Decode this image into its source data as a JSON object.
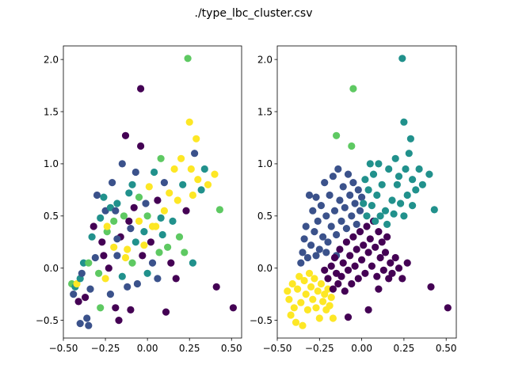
{
  "title": "./type_lbc_cluster.csv",
  "chart_data": [
    {
      "type": "scatter",
      "panel": "left",
      "xlim": [
        -0.5,
        0.56
      ],
      "ylim": [
        -0.67,
        2.13
      ],
      "xticks": [
        -0.5,
        -0.25,
        0.0,
        0.25,
        0.5
      ],
      "xtick_labels": [
        "−0.50",
        "−0.25",
        "0.00",
        "0.25",
        "0.50"
      ],
      "yticks": [
        -0.5,
        0.0,
        0.5,
        1.0,
        1.5,
        2.0
      ],
      "ytick_labels": [
        "−0.5",
        "0.0",
        "0.5",
        "1.0",
        "1.5",
        "2.0"
      ],
      "grid": false,
      "legend": "none",
      "colormap": "viridis",
      "colors": [
        "#440154",
        "#3b528b",
        "#21918c",
        "#5ec962",
        "#fde725"
      ],
      "points": [
        [
          -0.45,
          -0.15,
          3
        ],
        [
          -0.44,
          -0.25,
          1
        ],
        [
          -0.43,
          -0.18,
          2
        ],
        [
          -0.42,
          -0.15,
          4
        ],
        [
          -0.41,
          -0.32,
          0
        ],
        [
          -0.4,
          -0.1,
          2
        ],
        [
          -0.4,
          -0.53,
          1
        ],
        [
          -0.39,
          -0.05,
          1
        ],
        [
          -0.38,
          0.05,
          2
        ],
        [
          -0.37,
          -0.28,
          0
        ],
        [
          -0.36,
          -0.48,
          1
        ],
        [
          -0.35,
          -0.55,
          1
        ],
        [
          -0.35,
          0.05,
          3
        ],
        [
          -0.34,
          -0.2,
          1
        ],
        [
          -0.33,
          0.3,
          2
        ],
        [
          -0.32,
          0.4,
          0
        ],
        [
          -0.31,
          0.1,
          1
        ],
        [
          -0.3,
          0.7,
          1
        ],
        [
          -0.29,
          -0.05,
          3
        ],
        [
          -0.28,
          0.48,
          2
        ],
        [
          -0.28,
          -0.38,
          3
        ],
        [
          -0.27,
          0.25,
          0
        ],
        [
          -0.26,
          0.68,
          2
        ],
        [
          -0.25,
          0.55,
          1
        ],
        [
          -0.25,
          -0.1,
          4
        ],
        [
          -0.24,
          0.35,
          3
        ],
        [
          -0.23,
          0.0,
          0
        ],
        [
          -0.22,
          0.58,
          2
        ],
        [
          -0.22,
          -0.25,
          1
        ],
        [
          -0.21,
          0.82,
          1
        ],
        [
          -0.2,
          0.2,
          4
        ],
        [
          -0.2,
          0.45,
          3
        ],
        [
          -0.19,
          -0.38,
          0
        ],
        [
          -0.18,
          0.12,
          1
        ],
        [
          -0.18,
          0.62,
          2
        ],
        [
          -0.17,
          -0.5,
          0
        ],
        [
          -0.16,
          0.3,
          0
        ],
        [
          -0.15,
          -0.08,
          2
        ],
        [
          -0.15,
          1.0,
          1
        ],
        [
          -0.14,
          0.5,
          3
        ],
        [
          -0.13,
          1.27,
          0
        ],
        [
          -0.12,
          0.18,
          4
        ],
        [
          -0.12,
          -0.18,
          1
        ],
        [
          -0.11,
          0.72,
          2
        ],
        [
          -0.1,
          0.38,
          1
        ],
        [
          -0.1,
          -0.4,
          0
        ],
        [
          -0.09,
          0.05,
          3
        ],
        [
          -0.08,
          0.58,
          0
        ],
        [
          -0.07,
          0.25,
          2
        ],
        [
          -0.07,
          0.92,
          1
        ],
        [
          -0.06,
          -0.15,
          1
        ],
        [
          -0.05,
          0.45,
          4
        ],
        [
          -0.05,
          0.68,
          3
        ],
        [
          -0.04,
          1.72,
          0
        ],
        [
          -0.04,
          1.17,
          0
        ],
        [
          -0.03,
          0.12,
          0
        ],
        [
          -0.02,
          0.35,
          2
        ],
        [
          -0.01,
          0.62,
          1
        ],
        [
          0.0,
          -0.05,
          2
        ],
        [
          0.0,
          0.5,
          3
        ],
        [
          0.01,
          0.78,
          4
        ],
        [
          0.02,
          0.25,
          0
        ],
        [
          0.03,
          0.05,
          1
        ],
        [
          0.04,
          0.92,
          2
        ],
        [
          0.05,
          0.4,
          4
        ],
        [
          0.06,
          -0.1,
          1
        ],
        [
          0.06,
          0.65,
          0
        ],
        [
          0.07,
          0.15,
          3
        ],
        [
          0.08,
          1.05,
          3
        ],
        [
          0.09,
          0.32,
          2
        ],
        [
          0.1,
          0.55,
          4
        ],
        [
          0.1,
          0.82,
          1
        ],
        [
          0.11,
          -0.42,
          0
        ],
        [
          0.12,
          0.2,
          3
        ],
        [
          0.13,
          0.72,
          4
        ],
        [
          0.14,
          0.05,
          0
        ],
        [
          0.15,
          0.45,
          2
        ],
        [
          0.16,
          0.95,
          4
        ],
        [
          0.17,
          -0.1,
          0
        ],
        [
          0.18,
          0.65,
          4
        ],
        [
          0.19,
          0.3,
          3
        ],
        [
          0.2,
          1.05,
          4
        ],
        [
          0.21,
          0.8,
          2
        ],
        [
          0.22,
          0.15,
          3
        ],
        [
          0.23,
          0.55,
          0
        ],
        [
          0.24,
          2.01,
          3
        ],
        [
          0.25,
          1.4,
          4
        ],
        [
          0.26,
          0.95,
          4
        ],
        [
          0.27,
          0.7,
          4
        ],
        [
          0.27,
          0.05,
          2
        ],
        [
          0.28,
          1.1,
          1
        ],
        [
          0.29,
          1.24,
          4
        ],
        [
          0.3,
          0.85,
          4
        ],
        [
          0.32,
          0.75,
          2
        ],
        [
          0.34,
          0.95,
          2
        ],
        [
          0.36,
          0.8,
          4
        ],
        [
          0.4,
          0.9,
          4
        ],
        [
          0.41,
          -0.18,
          0
        ],
        [
          0.43,
          0.56,
          3
        ],
        [
          0.51,
          -0.38,
          0
        ],
        [
          -0.24,
          0.4,
          4
        ],
        [
          -0.19,
          0.55,
          1
        ],
        [
          -0.13,
          0.1,
          4
        ],
        [
          -0.09,
          0.8,
          2
        ],
        [
          0.03,
          0.4,
          4
        ],
        [
          -0.26,
          0.12,
          0
        ],
        [
          -0.18,
          0.28,
          1
        ],
        [
          -0.11,
          0.45,
          0
        ],
        [
          -0.02,
          0.22,
          4
        ],
        [
          0.08,
          0.48,
          2
        ]
      ]
    },
    {
      "type": "scatter",
      "panel": "right",
      "xlim": [
        -0.5,
        0.56
      ],
      "ylim": [
        -0.67,
        2.13
      ],
      "xticks": [
        -0.5,
        -0.25,
        0.0,
        0.25,
        0.5
      ],
      "xtick_labels": [
        "−0.50",
        "−0.25",
        "0.00",
        "0.25",
        "0.50"
      ],
      "yticks": [
        -0.5,
        0.0,
        0.5,
        1.0,
        1.5,
        2.0
      ],
      "ytick_labels": [
        "−0.5",
        "0.0",
        "0.5",
        "1.0",
        "1.5",
        "2.0"
      ],
      "grid": false,
      "legend": "none",
      "colormap": "viridis",
      "colors": [
        "#440154",
        "#3b528b",
        "#21918c",
        "#5ec962",
        "#fde725"
      ],
      "points": [
        [
          -0.44,
          -0.22,
          4
        ],
        [
          -0.43,
          -0.3,
          4
        ],
        [
          -0.42,
          -0.45,
          4
        ],
        [
          -0.41,
          -0.15,
          4
        ],
        [
          -0.4,
          -0.38,
          4
        ],
        [
          -0.39,
          -0.52,
          4
        ],
        [
          -0.38,
          -0.2,
          4
        ],
        [
          -0.37,
          -0.08,
          4
        ],
        [
          -0.36,
          -0.33,
          4
        ],
        [
          -0.35,
          -0.55,
          4
        ],
        [
          -0.34,
          -0.12,
          4
        ],
        [
          -0.33,
          -0.25,
          4
        ],
        [
          -0.32,
          -0.4,
          4
        ],
        [
          -0.31,
          -0.05,
          4
        ],
        [
          -0.3,
          -0.18,
          4
        ],
        [
          -0.29,
          -0.3,
          4
        ],
        [
          -0.28,
          -0.1,
          4
        ],
        [
          -0.27,
          -0.38,
          4
        ],
        [
          -0.26,
          -0.22,
          4
        ],
        [
          -0.25,
          -0.48,
          4
        ],
        [
          -0.24,
          -0.15,
          4
        ],
        [
          -0.23,
          -0.32,
          4
        ],
        [
          -0.22,
          -0.25,
          4
        ],
        [
          -0.21,
          -0.4,
          4
        ],
        [
          -0.2,
          -0.2,
          4
        ],
        [
          -0.19,
          -0.36,
          4
        ],
        [
          -0.18,
          -0.28,
          4
        ],
        [
          -0.17,
          -0.48,
          4
        ],
        [
          -0.36,
          0.05,
          1
        ],
        [
          -0.35,
          0.15,
          1
        ],
        [
          -0.34,
          0.28,
          1
        ],
        [
          -0.33,
          0.4,
          1
        ],
        [
          -0.32,
          0.1,
          1
        ],
        [
          -0.31,
          0.7,
          1
        ],
        [
          -0.3,
          0.22,
          1
        ],
        [
          -0.29,
          0.55,
          1
        ],
        [
          -0.28,
          0.35,
          1
        ],
        [
          -0.27,
          0.68,
          1
        ],
        [
          -0.26,
          0.45,
          1
        ],
        [
          -0.25,
          0.18,
          1
        ],
        [
          -0.24,
          0.6,
          1
        ],
        [
          -0.23,
          0.3,
          1
        ],
        [
          -0.22,
          0.82,
          1
        ],
        [
          -0.21,
          0.5,
          1
        ],
        [
          -0.2,
          0.25,
          1
        ],
        [
          -0.19,
          0.7,
          1
        ],
        [
          -0.18,
          0.4,
          1
        ],
        [
          -0.17,
          0.88,
          1
        ],
        [
          -0.16,
          0.55,
          1
        ],
        [
          -0.15,
          0.32,
          1
        ],
        [
          -0.14,
          0.95,
          1
        ],
        [
          -0.13,
          0.65,
          1
        ],
        [
          -0.12,
          0.45,
          1
        ],
        [
          -0.11,
          0.78,
          1
        ],
        [
          -0.1,
          0.58,
          1
        ],
        [
          -0.09,
          0.38,
          1
        ],
        [
          -0.08,
          0.9,
          1
        ],
        [
          -0.07,
          0.7,
          1
        ],
        [
          -0.06,
          0.5,
          1
        ],
        [
          -0.05,
          0.82,
          1
        ],
        [
          -0.04,
          0.62,
          1
        ],
        [
          -0.03,
          0.42,
          1
        ],
        [
          -0.02,
          0.75,
          1
        ],
        [
          -0.01,
          0.55,
          1
        ],
        [
          0.0,
          0.68,
          1
        ],
        [
          -0.27,
          0.12,
          1
        ],
        [
          -0.21,
          0.15,
          1
        ],
        [
          -0.15,
          0.12,
          1
        ],
        [
          -0.22,
          -0.02,
          0
        ],
        [
          -0.2,
          -0.1,
          0
        ],
        [
          -0.18,
          0.02,
          0
        ],
        [
          -0.17,
          -0.2,
          0
        ],
        [
          -0.16,
          0.1,
          0
        ],
        [
          -0.15,
          -0.05,
          0
        ],
        [
          -0.14,
          -0.15,
          0
        ],
        [
          -0.13,
          0.18,
          0
        ],
        [
          -0.12,
          -0.08,
          0
        ],
        [
          -0.11,
          0.05,
          0
        ],
        [
          -0.1,
          -0.22,
          0
        ],
        [
          -0.09,
          0.25,
          0
        ],
        [
          -0.08,
          -0.02,
          0
        ],
        [
          -0.07,
          0.12,
          0
        ],
        [
          -0.06,
          -0.15,
          0
        ],
        [
          -0.05,
          0.3,
          0
        ],
        [
          -0.04,
          0.02,
          0
        ],
        [
          -0.03,
          0.18,
          0
        ],
        [
          -0.02,
          -0.1,
          0
        ],
        [
          -0.01,
          0.35,
          0
        ],
        [
          0.0,
          0.08,
          0
        ],
        [
          0.01,
          0.22,
          0
        ],
        [
          0.02,
          -0.05,
          0
        ],
        [
          0.03,
          0.4,
          0
        ],
        [
          0.04,
          0.15,
          0
        ],
        [
          0.05,
          0.28,
          0
        ],
        [
          0.06,
          0.02,
          0
        ],
        [
          0.07,
          0.45,
          0
        ],
        [
          0.08,
          0.2,
          0
        ],
        [
          0.09,
          -0.08,
          0
        ],
        [
          0.1,
          0.35,
          0
        ],
        [
          0.11,
          0.1,
          0
        ],
        [
          0.12,
          0.25,
          0
        ],
        [
          0.13,
          -0.02,
          0
        ],
        [
          0.14,
          0.15,
          0
        ],
        [
          0.15,
          0.3,
          0
        ],
        [
          0.16,
          -0.1,
          0
        ],
        [
          0.17,
          0.05,
          0
        ],
        [
          0.18,
          -0.05,
          0
        ],
        [
          0.2,
          0.1,
          0
        ],
        [
          0.24,
          -0.1,
          0
        ],
        [
          0.27,
          0.05,
          0
        ],
        [
          0.04,
          -0.4,
          0
        ],
        [
          -0.08,
          -0.47,
          0
        ],
        [
          0.1,
          -0.2,
          0
        ],
        [
          0.41,
          -0.18,
          0
        ],
        [
          0.51,
          -0.38,
          0
        ],
        [
          0.22,
          0.0,
          0
        ],
        [
          -0.15,
          1.27,
          3
        ],
        [
          -0.05,
          1.72,
          3
        ],
        [
          -0.06,
          1.17,
          3
        ],
        [
          0.24,
          2.01,
          2
        ],
        [
          0.25,
          1.4,
          2
        ],
        [
          0.29,
          1.24,
          2
        ],
        [
          0.26,
          0.95,
          2
        ],
        [
          0.28,
          1.1,
          2
        ],
        [
          0.3,
          0.85,
          2
        ],
        [
          0.32,
          0.75,
          2
        ],
        [
          0.34,
          0.95,
          2
        ],
        [
          0.36,
          0.8,
          2
        ],
        [
          0.4,
          0.9,
          2
        ],
        [
          0.43,
          0.56,
          2
        ],
        [
          0.2,
          1.05,
          2
        ],
        [
          0.21,
          0.8,
          2
        ],
        [
          0.18,
          0.65,
          2
        ],
        [
          0.16,
          0.95,
          2
        ],
        [
          0.14,
          0.55,
          2
        ],
        [
          0.12,
          0.8,
          2
        ],
        [
          0.1,
          1.0,
          2
        ],
        [
          0.09,
          0.7,
          2
        ],
        [
          0.08,
          0.45,
          2
        ],
        [
          0.07,
          0.9,
          2
        ],
        [
          0.06,
          0.6,
          2
        ],
        [
          0.05,
          1.0,
          2
        ],
        [
          0.04,
          0.75,
          2
        ],
        [
          0.03,
          0.5,
          2
        ],
        [
          0.02,
          0.85,
          2
        ],
        [
          0.01,
          0.62,
          2
        ],
        [
          0.11,
          0.5,
          2
        ],
        [
          0.15,
          0.42,
          2
        ],
        [
          0.19,
          0.52,
          2
        ],
        [
          0.23,
          0.62,
          2
        ],
        [
          0.27,
          0.7,
          2
        ],
        [
          0.25,
          0.5,
          2
        ],
        [
          0.3,
          0.6,
          2
        ],
        [
          0.22,
          0.88,
          2
        ]
      ]
    }
  ]
}
